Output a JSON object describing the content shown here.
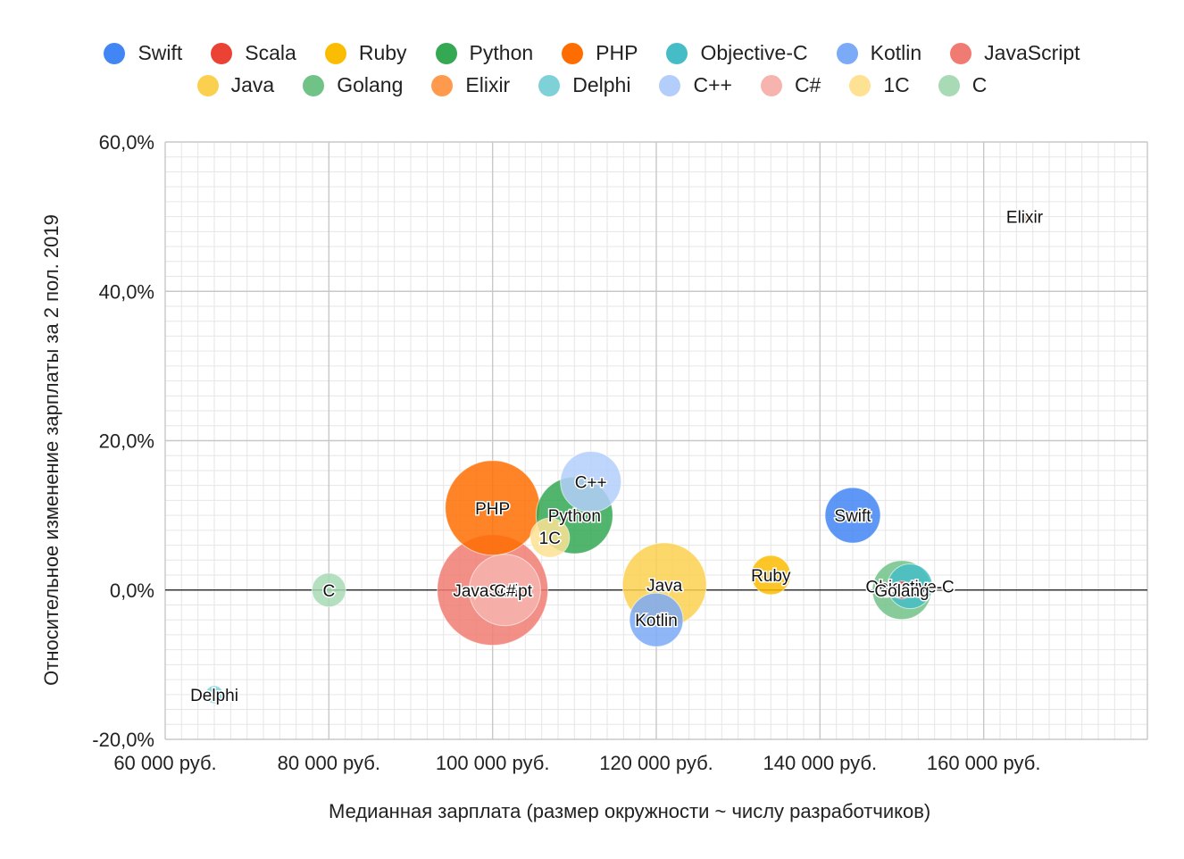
{
  "chart_data": {
    "type": "bubble",
    "title": "",
    "xlabel": "Медианная зарплата (размер окружности ~ числу разработчиков)",
    "ylabel": "Относительное изменение зарплаты за 2 пол. 2019",
    "xlim": [
      60000,
      180000
    ],
    "ylim": [
      -20,
      60
    ],
    "x_ticks": [
      60000,
      80000,
      100000,
      120000,
      140000,
      160000
    ],
    "x_tick_labels": [
      "60 000 руб.",
      "80 000 руб.",
      "100 000 руб.",
      "120 000 руб.",
      "140 000 руб.",
      "160 000 руб."
    ],
    "y_ticks": [
      -20,
      0,
      20,
      40,
      60
    ],
    "y_tick_labels": [
      "-20,0%",
      "0,0%",
      "20,0%",
      "40,0%",
      "60,0%"
    ],
    "grid": true,
    "legend_position": "top",
    "legend_rows": [
      [
        "Swift",
        "Scala",
        "Ruby",
        "Python",
        "PHP",
        "Objective-C",
        "Kotlin",
        "JavaScript"
      ],
      [
        "Java",
        "Golang",
        "Elixir",
        "Delphi",
        "C++",
        "C#",
        "1C",
        "C"
      ]
    ],
    "series": [
      {
        "name": "Swift",
        "x": 144000,
        "y": 10,
        "size": 31,
        "color": "#4285f4"
      },
      {
        "name": "Scala",
        "x": 150000,
        "y": 0,
        "size": 10,
        "color": "#ea4335"
      },
      {
        "name": "Ruby",
        "x": 134000,
        "y": 2,
        "size": 22,
        "color": "#fbbc04"
      },
      {
        "name": "Python",
        "x": 110000,
        "y": 10,
        "size": 43,
        "color": "#34a853"
      },
      {
        "name": "PHP",
        "x": 100000,
        "y": 11,
        "size": 53,
        "color": "#ff6d01"
      },
      {
        "name": "Objective-C",
        "x": 151000,
        "y": 0.5,
        "size": 25,
        "color": "#46bdc6"
      },
      {
        "name": "Kotlin",
        "x": 120000,
        "y": -4,
        "size": 30,
        "color": "#7baaf7"
      },
      {
        "name": "JavaScript",
        "x": 100000,
        "y": 0,
        "size": 62,
        "color": "#f07b72"
      },
      {
        "name": "Java",
        "x": 121000,
        "y": 0.7,
        "size": 47,
        "color": "#fcd04f"
      },
      {
        "name": "Golang",
        "x": 150000,
        "y": 0,
        "size": 33,
        "color": "#71c287"
      },
      {
        "name": "Elixir",
        "x": 165000,
        "y": 50,
        "size": 6,
        "color": "#ff994d"
      },
      {
        "name": "Delphi",
        "x": 66000,
        "y": -14,
        "size": 10,
        "color": "#7ed1d7"
      },
      {
        "name": "C++",
        "x": 112000,
        "y": 14.5,
        "size": 34,
        "color": "#b3cefb"
      },
      {
        "name": "C#",
        "x": 101500,
        "y": 0,
        "size": 40,
        "color": "#f7b4ae"
      },
      {
        "name": "1C",
        "x": 107000,
        "y": 7,
        "size": 22,
        "color": "#fde293"
      },
      {
        "name": "C",
        "x": 80000,
        "y": 0,
        "size": 19,
        "color": "#a8dab5"
      }
    ],
    "zero_line": true
  }
}
